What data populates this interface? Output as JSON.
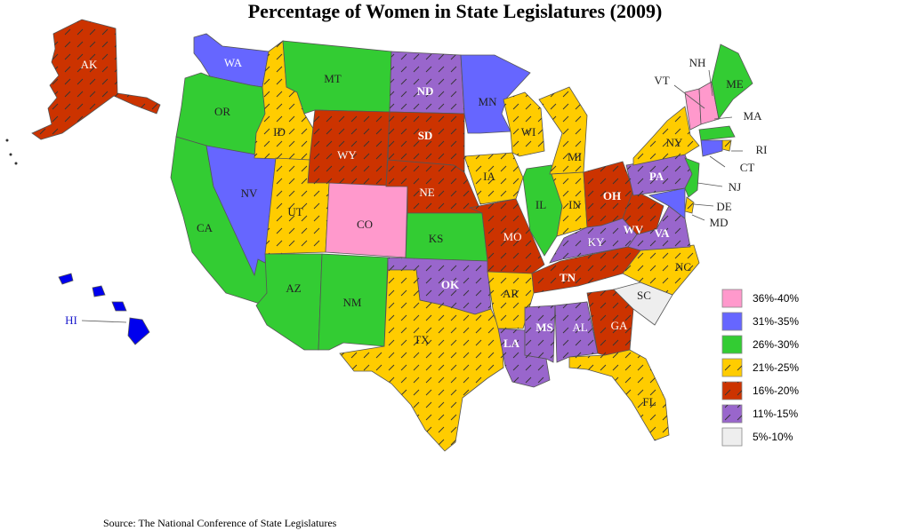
{
  "title": "Percentage of Women in State Legislatures (2009)",
  "source": "Source: The National Conference of State Legislatures",
  "categories": [
    {
      "range": "36%-40%",
      "color": "#ff99cc",
      "hatch": false
    },
    {
      "range": "31%-35%",
      "color": "#6666ff",
      "hatch": false
    },
    {
      "range": "26%-30%",
      "color": "#33cc33",
      "hatch": false
    },
    {
      "range": "21%-25%",
      "color": "#ffcc00",
      "hatch": true
    },
    {
      "range": "16%-20%",
      "color": "#cc3300",
      "hatch": true
    },
    {
      "range": "11%-15%",
      "color": "#9966cc",
      "hatch": true
    },
    {
      "range": "5%-10%",
      "color": "#eeeeee",
      "hatch": false
    }
  ],
  "states": [
    {
      "abbr": "AK",
      "cat": "16%-20%"
    },
    {
      "abbr": "WA",
      "cat": "31%-35%"
    },
    {
      "abbr": "OR",
      "cat": "26%-30%"
    },
    {
      "abbr": "CA",
      "cat": "26%-30%"
    },
    {
      "abbr": "NV",
      "cat": "31%-35%"
    },
    {
      "abbr": "ID",
      "cat": "21%-25%"
    },
    {
      "abbr": "MT",
      "cat": "26%-30%"
    },
    {
      "abbr": "WY",
      "cat": "16%-20%"
    },
    {
      "abbr": "UT",
      "cat": "21%-25%"
    },
    {
      "abbr": "CO",
      "cat": "36%-40%"
    },
    {
      "abbr": "AZ",
      "cat": "26%-30%"
    },
    {
      "abbr": "NM",
      "cat": "26%-30%"
    },
    {
      "abbr": "ND",
      "cat": "11%-15%"
    },
    {
      "abbr": "SD",
      "cat": "16%-20%"
    },
    {
      "abbr": "NE",
      "cat": "16%-20%"
    },
    {
      "abbr": "KS",
      "cat": "26%-30%"
    },
    {
      "abbr": "OK",
      "cat": "11%-15%"
    },
    {
      "abbr": "TX",
      "cat": "21%-25%"
    },
    {
      "abbr": "MN",
      "cat": "31%-35%"
    },
    {
      "abbr": "IA",
      "cat": "21%-25%"
    },
    {
      "abbr": "MO",
      "cat": "16%-20%"
    },
    {
      "abbr": "AR",
      "cat": "21%-25%"
    },
    {
      "abbr": "LA",
      "cat": "11%-15%"
    },
    {
      "abbr": "WI",
      "cat": "21%-25%"
    },
    {
      "abbr": "IL",
      "cat": "26%-30%"
    },
    {
      "abbr": "MI",
      "cat": "21%-25%"
    },
    {
      "abbr": "IN",
      "cat": "21%-25%"
    },
    {
      "abbr": "OH",
      "cat": "16%-20%"
    },
    {
      "abbr": "KY",
      "cat": "11%-15%"
    },
    {
      "abbr": "TN",
      "cat": "16%-20%"
    },
    {
      "abbr": "MS",
      "cat": "11%-15%"
    },
    {
      "abbr": "AL",
      "cat": "11%-15%"
    },
    {
      "abbr": "GA",
      "cat": "16%-20%"
    },
    {
      "abbr": "FL",
      "cat": "21%-25%"
    },
    {
      "abbr": "SC",
      "cat": "5%-10%"
    },
    {
      "abbr": "NC",
      "cat": "21%-25%"
    },
    {
      "abbr": "VA",
      "cat": "11%-15%"
    },
    {
      "abbr": "WV",
      "cat": "16%-20%"
    },
    {
      "abbr": "PA",
      "cat": "11%-15%"
    },
    {
      "abbr": "NY",
      "cat": "21%-25%"
    },
    {
      "abbr": "VT",
      "cat": "36%-40%"
    },
    {
      "abbr": "NH",
      "cat": "36%-40%"
    },
    {
      "abbr": "ME",
      "cat": "26%-30%"
    },
    {
      "abbr": "MA",
      "cat": "26%-30%"
    },
    {
      "abbr": "RI",
      "cat": "21%-25%"
    },
    {
      "abbr": "CT",
      "cat": "31%-35%"
    },
    {
      "abbr": "NJ",
      "cat": "26%-30%"
    },
    {
      "abbr": "DE",
      "cat": "21%-25%"
    },
    {
      "abbr": "MD",
      "cat": "31%-35%"
    },
    {
      "abbr": "HI",
      "cat": "31%-35%"
    }
  ]
}
